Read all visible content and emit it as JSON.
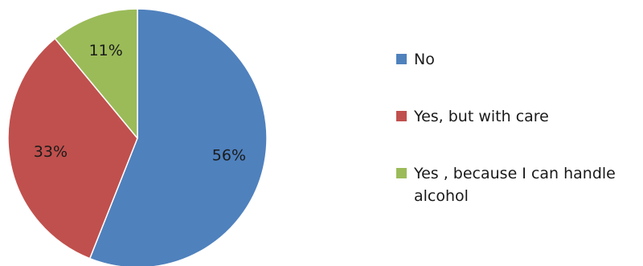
{
  "chart_data": {
    "type": "pie",
    "title": "",
    "categories": [
      "No",
      "Yes, but  with care",
      "Yes , because I can handle alcohol"
    ],
    "values": [
      56,
      33,
      11
    ],
    "labels": [
      "56%",
      "33%",
      "11%"
    ],
    "colors": [
      "#4f81bd",
      "#c0504d",
      "#9bbb59"
    ],
    "start_angle_deg": 0,
    "direction": "clockwise",
    "legend_position": "right",
    "grid": false
  }
}
